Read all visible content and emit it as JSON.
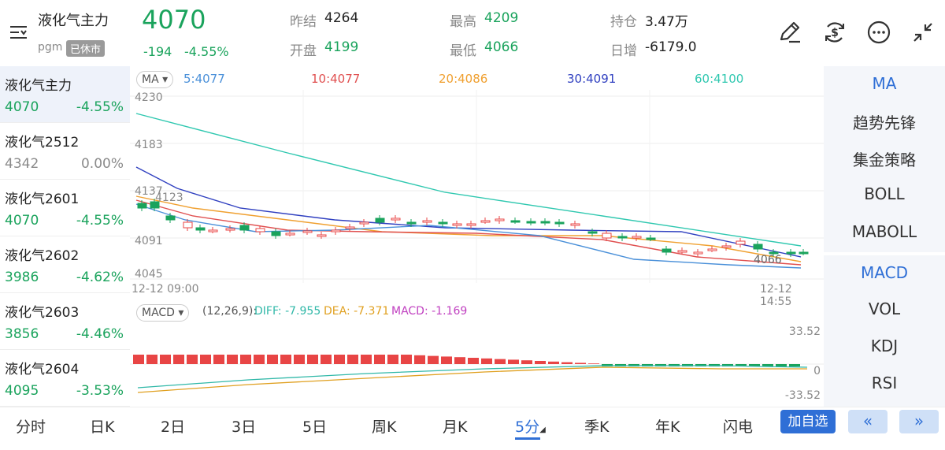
{
  "header": {
    "title": "液化气主力",
    "exchange": "pgm",
    "status_badge": "已休市",
    "price": "4070",
    "change": "-194",
    "change_pct": "-4.55%",
    "stats": [
      {
        "label": "昨结",
        "value": "4264",
        "color": "#222222"
      },
      {
        "label": "最高",
        "value": "4209",
        "color": "#1aa35c"
      },
      {
        "label": "持仓",
        "value": "3.47万",
        "color": "#222222"
      },
      {
        "label": "开盘",
        "value": "4199",
        "color": "#1aa35c"
      },
      {
        "label": "最低",
        "value": "4066",
        "color": "#1aa35c"
      },
      {
        "label": "日增",
        "value": "-6179.0",
        "color": "#222222"
      }
    ],
    "icons": [
      "pen-icon",
      "dollar-cycle-icon",
      "more-icon",
      "shrink-icon"
    ]
  },
  "sidebar": {
    "items": [
      {
        "name": "液化气主力",
        "price": "4070",
        "pct": "-4.55%",
        "color": "#1aa35c"
      },
      {
        "name": "液化气2512",
        "price": "4342",
        "pct": "0.00%",
        "color": "#8a8a8a"
      },
      {
        "name": "液化气2601",
        "price": "4070",
        "pct": "-4.55%",
        "color": "#1aa35c"
      },
      {
        "name": "液化气2602",
        "price": "3986",
        "pct": "-4.62%",
        "color": "#1aa35c"
      },
      {
        "name": "液化气2603",
        "price": "3856",
        "pct": "-4.46%",
        "color": "#1aa35c"
      },
      {
        "name": "液化气2604",
        "price": "4095",
        "pct": "-3.53%",
        "color": "#1aa35c"
      }
    ]
  },
  "right_panel": {
    "main_indicators": [
      "MA",
      "趋势先锋",
      "集金策略",
      "BOLL",
      "MABOLL"
    ],
    "sub_indicators": [
      "MACD",
      "VOL",
      "KDJ",
      "RSI"
    ]
  },
  "chart": {
    "ma_button": "MA",
    "ma_legend": [
      {
        "text": "5:4077",
        "color": "#4a90d9"
      },
      {
        "text": "10:4077",
        "color": "#e05050"
      },
      {
        "text": "20:4086",
        "color": "#f0a030"
      },
      {
        "text": "30:4091",
        "color": "#3040c0"
      },
      {
        "text": "60:4100",
        "color": "#30c8b0"
      }
    ],
    "y_labels": [
      "4230",
      "4183",
      "4137",
      "4091",
      "4045"
    ],
    "high_label": "4123",
    "low_label": "4066",
    "time_start": "12-12 09:00",
    "time_end": "12-12 14:55",
    "macd_button": "MACD",
    "macd_params": "(12,26,9):",
    "macd_legend": [
      {
        "text": "DIFF: -7.955",
        "color": "#30b8a8"
      },
      {
        "text": "DEA: -7.371",
        "color": "#e0a020"
      },
      {
        "text": "MACD: -1.169",
        "color": "#c040c0"
      }
    ],
    "macd_y_labels": [
      "33.52",
      "0",
      "-33.52"
    ]
  },
  "chart_data": {
    "type": "candlestick",
    "ylim": [
      4045,
      4230
    ],
    "ma": {
      "5": 4077,
      "10": 4077,
      "20": 4086,
      "30": 4091,
      "60": 4100
    },
    "macd": {
      "diff": -7.955,
      "dea": -7.371,
      "macd": -1.169,
      "ylim": [
        -33.52,
        33.52
      ]
    }
  },
  "bottom": {
    "tabs": [
      "分时",
      "日K",
      "2日",
      "3日",
      "5日",
      "周K",
      "月K",
      "5分",
      "季K",
      "年K",
      "闪电"
    ],
    "active_tab": "5分",
    "add_button": "加自选",
    "prev": "«",
    "next": "»"
  }
}
